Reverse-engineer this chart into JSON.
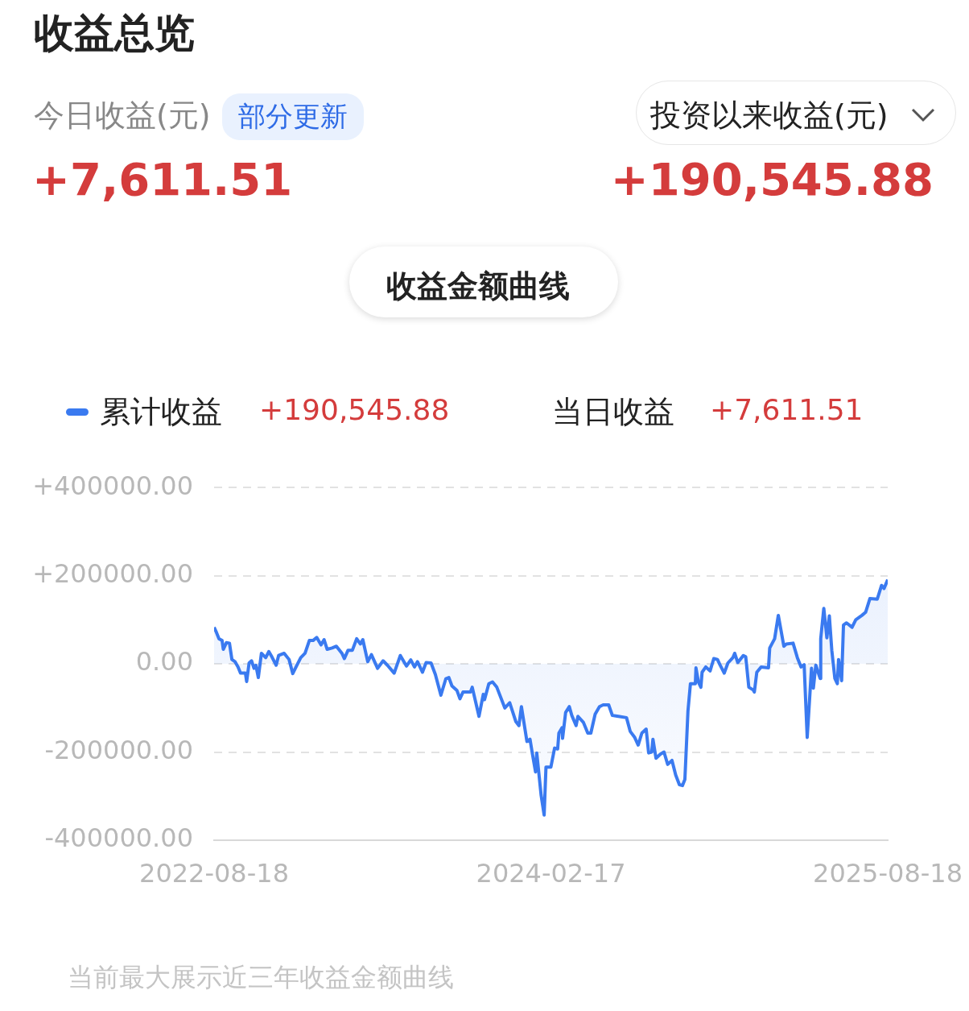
{
  "chart_data": {
    "type": "area",
    "title": "收益总览",
    "annotations": [
      "今日收益(元)",
      "部分更新",
      "+7,611.51",
      "投资以来收益(元)",
      "+190,545.88",
      "收益金额曲线",
      "+190,545.88",
      "当日收益",
      "+7,611.51",
      "当前最大展示近三年收益金额曲线"
    ],
    "xlim": [
      "2022-08-18",
      "2025-08-18"
    ],
    "xticks": [
      "2022-08-18",
      "2024-02-17",
      "2025-08-18"
    ],
    "ylim": [
      -400000,
      400000
    ],
    "yticks": [
      {
        "value": -400000,
        "label": "-400000.00"
      },
      {
        "value": -200000,
        "label": "-200000.00"
      },
      {
        "value": 0,
        "label": "0.00"
      },
      {
        "value": 200000,
        "label": "+200000.00"
      },
      {
        "value": 400000,
        "label": "+400000.00"
      }
    ],
    "grid": "y",
    "legend": "top left",
    "marker": "none",
    "line_style": "solid",
    "series": [
      {
        "name": "累计收益",
        "color": "#3a7af0",
        "x": [
          "2022-08-18",
          "2022-08-21",
          "2022-08-26",
          "2022-08-31",
          "2022-09-02",
          "2022-09-07",
          "2022-09-12",
          "2022-09-16",
          "2022-09-21",
          "2022-09-26",
          "2022-09-30",
          "2022-10-08",
          "2022-10-10",
          "2022-10-14",
          "2022-10-18",
          "2022-10-22",
          "2022-10-25",
          "2022-10-29",
          "2022-11-03",
          "2022-11-10",
          "2022-11-15",
          "2022-11-20",
          "2022-11-27",
          "2022-12-01",
          "2022-12-10",
          "2022-12-18",
          "2022-12-24",
          "2022-12-30",
          "2023-01-06",
          "2023-01-13",
          "2023-01-20",
          "2023-01-26",
          "2023-02-01",
          "2023-02-08",
          "2023-02-13",
          "2023-02-18",
          "2023-02-26",
          "2023-03-05",
          "2023-03-14",
          "2023-03-18",
          "2023-03-24",
          "2023-03-31",
          "2023-04-07",
          "2023-04-13",
          "2023-04-17",
          "2023-04-25",
          "2023-05-01",
          "2023-05-11",
          "2023-05-20",
          "2023-05-27",
          "2023-06-07",
          "2023-06-17",
          "2023-06-27",
          "2023-07-04",
          "2023-07-10",
          "2023-07-15",
          "2023-07-23",
          "2023-07-29",
          "2023-08-06",
          "2023-08-13",
          "2023-08-22",
          "2023-08-30",
          "2023-09-04",
          "2023-09-09",
          "2023-09-17",
          "2023-09-22",
          "2023-09-27",
          "2023-10-09",
          "2023-10-12",
          "2023-10-23",
          "2023-10-30",
          "2023-11-01",
          "2023-11-08",
          "2023-11-14",
          "2023-11-21",
          "2023-12-04",
          "2023-12-12",
          "2023-12-22",
          "2023-12-27",
          "2023-12-31",
          "2024-01-09",
          "2024-01-14",
          "2024-01-18",
          "2024-01-23",
          "2024-01-25",
          "2024-02-01",
          "2024-02-06",
          "2024-02-09",
          "2024-02-17",
          "2024-02-23",
          "2024-02-28",
          "2024-03-01",
          "2024-03-06",
          "2024-03-07",
          "2024-03-12",
          "2024-03-18",
          "2024-03-22",
          "2024-03-29",
          "2024-04-01",
          "2024-04-10",
          "2024-04-17",
          "2024-04-22",
          "2024-04-29",
          "2024-05-06",
          "2024-05-12",
          "2024-05-21",
          "2024-05-27",
          "2024-06-06",
          "2024-06-19",
          "2024-06-25",
          "2024-07-02",
          "2024-07-08",
          "2024-07-14",
          "2024-07-21",
          "2024-07-25",
          "2024-07-30",
          "2024-08-01",
          "2024-08-06",
          "2024-08-13",
          "2024-08-19",
          "2024-08-25",
          "2024-09-01",
          "2024-09-07",
          "2024-09-13",
          "2024-09-18",
          "2024-09-22",
          "2024-09-27",
          "2024-10-01",
          "2024-10-09",
          "2024-10-10",
          "2024-10-14",
          "2024-10-18",
          "2024-10-20",
          "2024-10-26",
          "2024-11-02",
          "2024-11-08",
          "2024-11-14",
          "2024-11-18",
          "2024-11-25",
          "2024-12-01",
          "2024-12-09",
          "2024-12-12",
          "2024-12-17",
          "2024-12-26",
          "2024-12-30",
          "2025-01-04",
          "2025-01-11",
          "2025-01-13",
          "2025-01-17",
          "2025-01-24",
          "2025-02-05",
          "2025-02-07",
          "2025-02-15",
          "2025-02-21",
          "2025-02-25",
          "2025-03-02",
          "2025-03-06",
          "2025-03-17",
          "2025-03-24",
          "2025-03-30",
          "2025-04-04",
          "2025-04-09",
          "2025-04-16",
          "2025-04-19",
          "2025-04-23",
          "2025-04-30",
          "2025-05-01",
          "2025-05-06",
          "2025-05-11",
          "2025-05-15",
          "2025-05-19",
          "2025-05-24",
          "2025-05-28",
          "2025-05-30",
          "2025-06-04",
          "2025-06-07",
          "2025-06-12",
          "2025-06-21",
          "2025-06-27",
          "2025-07-07",
          "2025-07-13",
          "2025-07-20",
          "2025-08-01",
          "2025-08-08",
          "2025-08-12",
          "2025-08-18"
        ],
        "values": [
          83000,
          74000,
          57000,
          53000,
          33000,
          48000,
          47000,
          10000,
          5000,
          -7000,
          -21000,
          -21000,
          -40000,
          2000,
          7000,
          -10000,
          -3000,
          -31000,
          24000,
          14000,
          28000,
          16000,
          -3000,
          19000,
          24000,
          10000,
          -22000,
          -5000,
          14000,
          24000,
          53000,
          53000,
          60000,
          43000,
          55000,
          33000,
          36000,
          40000,
          24000,
          12000,
          31000,
          31000,
          57000,
          45000,
          55000,
          5000,
          21000,
          -10000,
          7000,
          -3000,
          -21000,
          19000,
          -5000,
          9000,
          -7000,
          5000,
          -19000,
          3000,
          2000,
          -24000,
          -71000,
          -34000,
          -31000,
          -50000,
          -60000,
          -79000,
          -64000,
          -64000,
          -53000,
          -119000,
          -69000,
          -81000,
          -45000,
          -41000,
          -53000,
          -100000,
          -88000,
          -131000,
          -140000,
          -97000,
          -176000,
          -171000,
          -205000,
          -245000,
          -202000,
          -297000,
          -343000,
          -234000,
          -234000,
          -191000,
          -193000,
          -157000,
          -145000,
          -169000,
          -110000,
          -97000,
          -117000,
          -140000,
          -119000,
          -133000,
          -157000,
          -157000,
          -114000,
          -97000,
          -93000,
          -93000,
          -117000,
          -119000,
          -122000,
          -153000,
          -166000,
          -184000,
          -157000,
          -148000,
          -202000,
          -200000,
          -171000,
          -214000,
          -205000,
          -200000,
          -228000,
          -219000,
          -252000,
          -274000,
          -276000,
          -262000,
          -107000,
          -45000,
          -45000,
          -9000,
          -41000,
          -53000,
          -19000,
          -7000,
          -16000,
          12000,
          10000,
          -2000,
          -21000,
          2000,
          14000,
          24000,
          3000,
          19000,
          16000,
          -53000,
          -59000,
          -64000,
          -19000,
          -7000,
          -9000,
          36000,
          57000,
          110000,
          79000,
          40000,
          45000,
          47000,
          14000,
          -7000,
          -2000,
          -167000,
          -10000,
          -55000,
          -3000,
          -33000,
          57000,
          126000,
          59000,
          109000,
          31000,
          -33000,
          -45000,
          10000,
          -38000,
          88000,
          93000,
          83000,
          100000,
          110000,
          117000,
          148000,
          147000,
          178000,
          171000,
          191000
        ]
      }
    ]
  }
}
